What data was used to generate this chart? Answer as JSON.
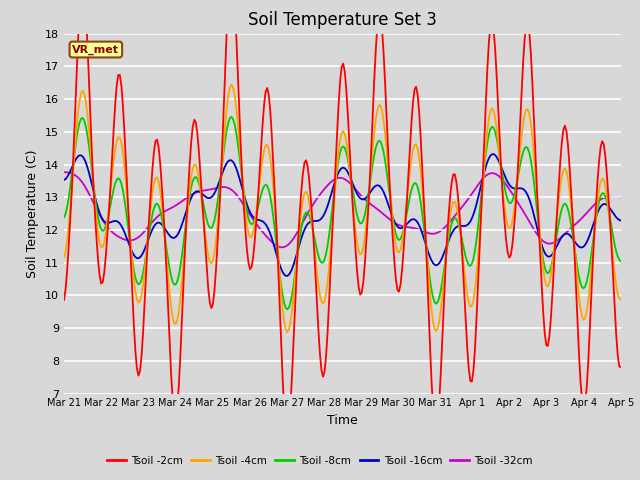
{
  "title": "Soil Temperature Set 3",
  "xlabel": "Time",
  "ylabel": "Soil Temperature (C)",
  "ylim": [
    7.0,
    18.0
  ],
  "yticks": [
    7.0,
    8.0,
    9.0,
    10.0,
    11.0,
    12.0,
    13.0,
    14.0,
    15.0,
    16.0,
    17.0,
    18.0
  ],
  "xtick_labels": [
    "Mar 21",
    "Mar 22",
    "Mar 23",
    "Mar 24",
    "Mar 25",
    "Mar 26",
    "Mar 27",
    "Mar 28",
    "Mar 29",
    "Mar 30",
    "Mar 31",
    "Apr 1",
    "Apr 2",
    "Apr 3",
    "Apr 4",
    "Apr 5"
  ],
  "series": [
    {
      "label": "Tsoil -2cm",
      "color": "#FF0000"
    },
    {
      "label": "Tsoil -4cm",
      "color": "#FFA500"
    },
    {
      "label": "Tsoil -8cm",
      "color": "#00CC00"
    },
    {
      "label": "Tsoil -16cm",
      "color": "#0000CC"
    },
    {
      "label": "Tsoil -32cm",
      "color": "#CC00CC"
    }
  ],
  "legend_box_text": "VR_met",
  "fig_bg": "#DCDCDC",
  "plot_bg": "#DCDCDC",
  "grid_color": "#FFFFFF",
  "title_fontsize": 12,
  "axis_fontsize": 9,
  "tick_fontsize": 8,
  "num_points": 360
}
